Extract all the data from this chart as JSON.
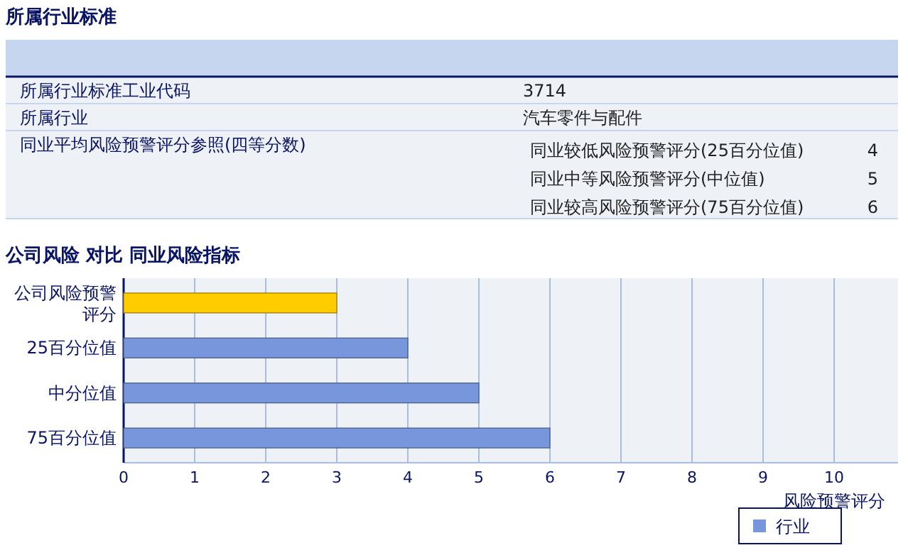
{
  "chart_data": [
    {
      "type": "other",
      "title": "所属行业标准",
      "annotations": [
        "所属行业标准工业代码",
        "3714",
        "所属行业",
        "汽车零件与配件",
        "同业平均风险预警评分参照(四等分数)",
        "同业较低风险预警评分(25百分位值)",
        "4",
        "同业中等风险预警评分(中位值)",
        "5",
        "同业较高风险预警评分(75百分位值)",
        "6"
      ]
    },
    {
      "type": "bar",
      "orientation": "horizontal",
      "title": "公司风险 对比 同业风险指标",
      "xlabel": "风险预警评分",
      "categories": [
        "公司风险预警评分",
        "25百分位值",
        "中分位值",
        "75百分位值"
      ],
      "series": [
        {
          "color": "#ffcc00",
          "values": [
            3,
            null,
            null,
            null
          ]
        },
        {
          "name": "行业",
          "color": "#7896dc",
          "values": [
            null,
            4,
            5,
            6
          ]
        }
      ],
      "xlim": [
        0,
        10.9
      ],
      "xticks": [
        0,
        1,
        2,
        3,
        4,
        5,
        6,
        7,
        8,
        9,
        10
      ],
      "grid": "x",
      "legend": "bottom right"
    }
  ]
}
